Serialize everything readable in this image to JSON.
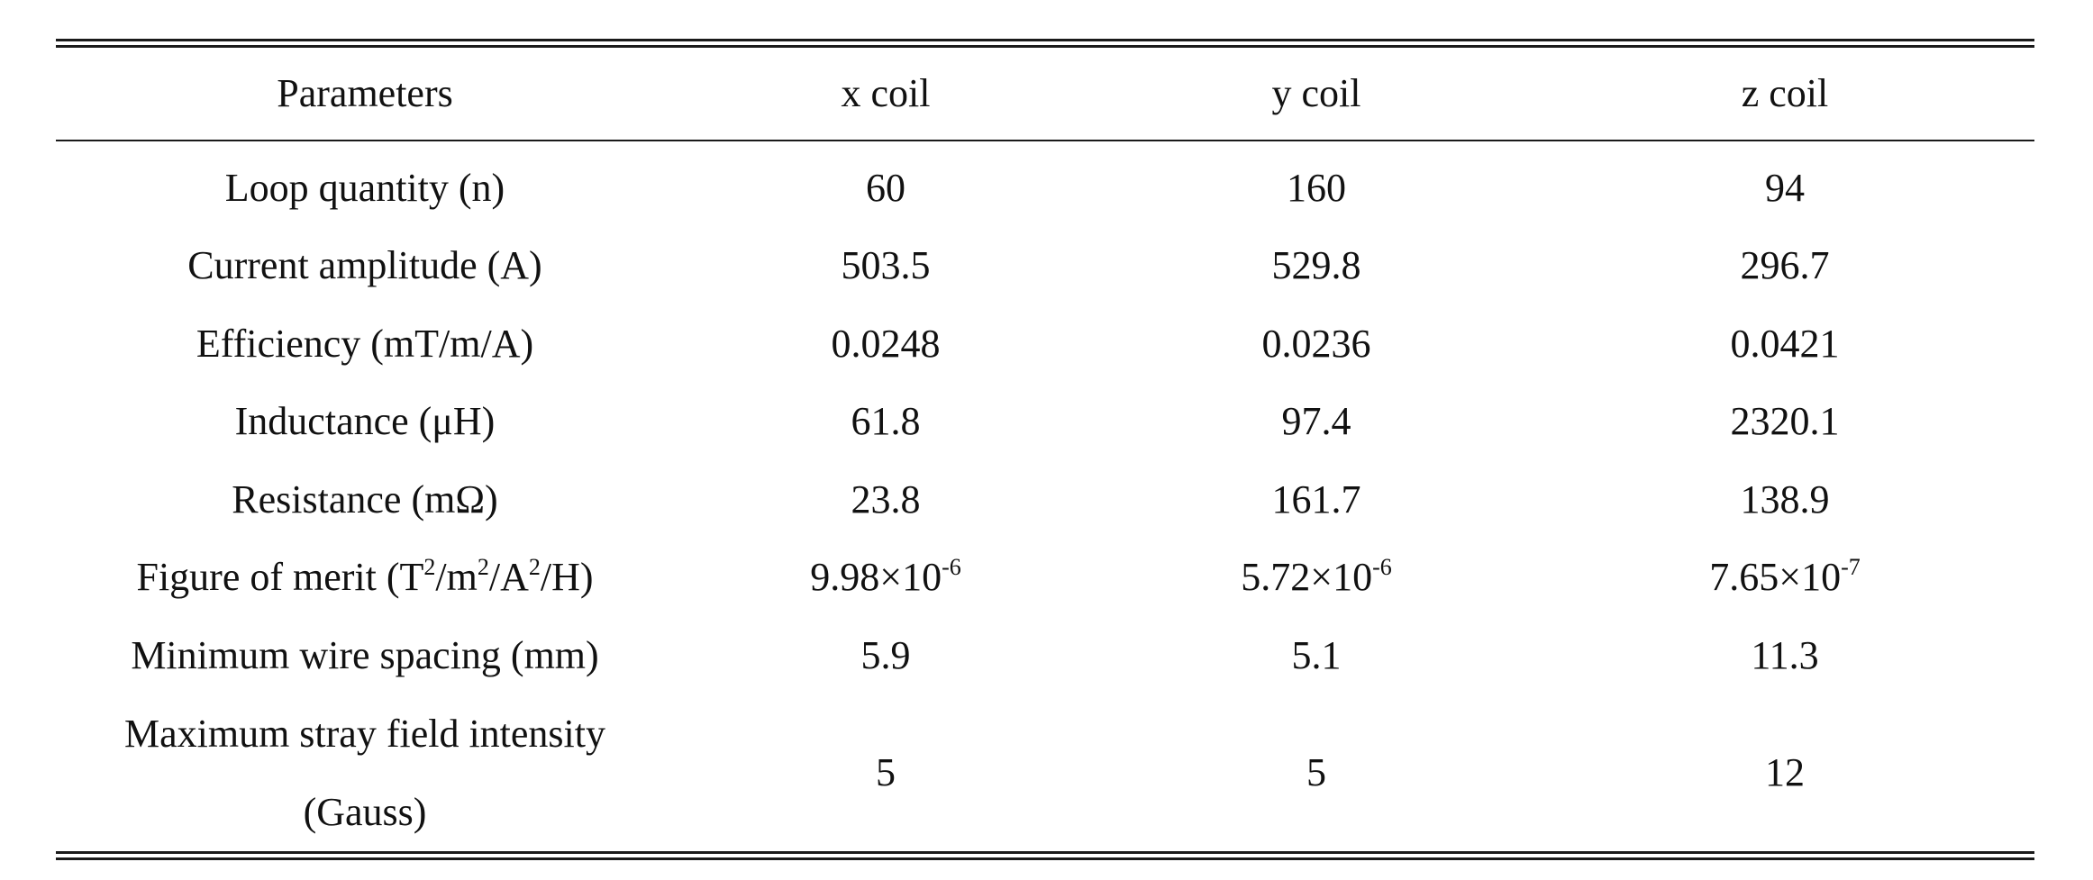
{
  "table": {
    "headers": [
      "Parameters",
      "x coil",
      "y coil",
      "z coil"
    ],
    "rows": [
      {
        "param": "Loop quantity (n)",
        "x": "60",
        "y": "160",
        "z": "94"
      },
      {
        "param": "Current amplitude (A)",
        "x": "503.5",
        "y": "529.8",
        "z": "296.7"
      },
      {
        "param": "Efficiency (mT/m/A)",
        "x": "0.0248",
        "y": "0.0236",
        "z": "0.0421"
      },
      {
        "param": "Inductance (μH)",
        "x": "61.8",
        "y": "97.4",
        "z": "2320.1"
      },
      {
        "param": "Resistance (mΩ)",
        "x": "23.8",
        "y": "161.7",
        "z": "138.9"
      },
      {
        "param_parts": {
          "a": "Figure of merit (T",
          "e1": "2",
          "b": "/m",
          "e2": "2",
          "c": "/A",
          "e3": "2",
          "d": "/H)"
        },
        "x": {
          "base": "9.98×10",
          "exp": "-6"
        },
        "y": {
          "base": "5.72×10",
          "exp": "-6"
        },
        "z": {
          "base": "7.65×10",
          "exp": "-7"
        }
      },
      {
        "param": "Minimum wire spacing (mm)",
        "x": "5.9",
        "y": "5.1",
        "z": "11.3"
      },
      {
        "param_line1": "Maximum stray field intensity",
        "param_line2": "(Gauss)",
        "x": "5",
        "y": "5",
        "z": "12"
      }
    ]
  }
}
